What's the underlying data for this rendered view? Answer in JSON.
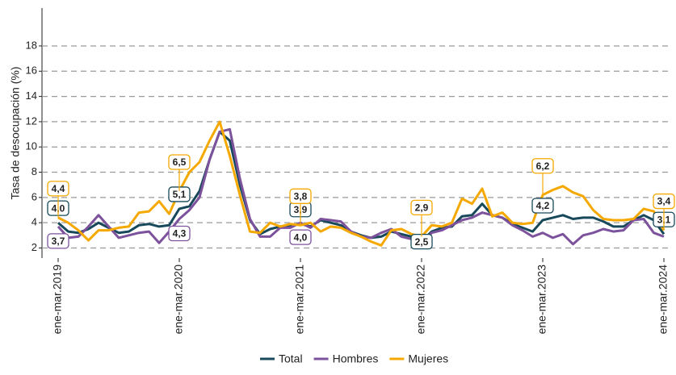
{
  "chart_data": {
    "type": "line",
    "y_label": "Tasa de desocupación (%)",
    "categories": [
      "ene-mar.2019",
      null,
      null,
      null,
      null,
      null,
      null,
      null,
      null,
      null,
      null,
      null,
      "ene-mar.2020",
      null,
      null,
      null,
      null,
      null,
      null,
      null,
      null,
      null,
      null,
      null,
      "ene-mar.2021",
      null,
      null,
      null,
      null,
      null,
      null,
      null,
      null,
      null,
      null,
      null,
      "ene-mar.2022",
      null,
      null,
      null,
      null,
      null,
      null,
      null,
      null,
      null,
      null,
      null,
      "ene-mar.2023",
      null,
      null,
      null,
      null,
      null,
      null,
      null,
      null,
      null,
      null,
      null,
      "ene-mar.2024"
    ],
    "ylim": [
      1.2,
      21
    ],
    "yticks": [
      2,
      4,
      6,
      8,
      10,
      12,
      14,
      16,
      18
    ],
    "grid": true,
    "legend": "bottom",
    "series": [
      {
        "name": "Total",
        "color": "#17495b",
        "values": [
          4.0,
          3.3,
          3.2,
          3.5,
          4.0,
          3.6,
          3.2,
          3.3,
          3.8,
          3.9,
          3.7,
          3.8,
          5.1,
          5.3,
          6.5,
          9.0,
          11.2,
          10.5,
          7.0,
          4.2,
          3.1,
          3.5,
          3.7,
          3.8,
          3.9,
          3.7,
          4.2,
          4.0,
          3.8,
          3.3,
          3.0,
          2.8,
          2.9,
          3.3,
          3.1,
          2.9,
          2.5,
          3.3,
          3.6,
          3.7,
          4.5,
          4.6,
          5.5,
          4.6,
          4.4,
          3.9,
          3.6,
          3.3,
          4.2,
          4.4,
          4.6,
          4.3,
          4.4,
          4.4,
          4.1,
          3.7,
          3.7,
          4.2,
          4.6,
          4.2,
          3.1
        ],
        "value_labels": [
          "4,0",
          null,
          null,
          null,
          null,
          null,
          null,
          null,
          null,
          null,
          null,
          null,
          "5,1",
          null,
          null,
          null,
          null,
          null,
          null,
          null,
          null,
          null,
          null,
          null,
          "3,9",
          null,
          null,
          null,
          null,
          null,
          null,
          null,
          null,
          null,
          null,
          null,
          "2,5",
          null,
          null,
          null,
          null,
          null,
          null,
          null,
          null,
          null,
          null,
          null,
          "4,2",
          null,
          null,
          null,
          null,
          null,
          null,
          null,
          null,
          null,
          null,
          null,
          "3,1"
        ]
      },
      {
        "name": "Hombres",
        "color": "#7d529c",
        "values": [
          3.7,
          2.8,
          2.9,
          3.7,
          4.6,
          3.7,
          2.8,
          3.0,
          3.2,
          3.3,
          2.4,
          3.3,
          4.3,
          5.0,
          6.0,
          9.0,
          11.2,
          11.4,
          7.5,
          4.3,
          2.9,
          2.9,
          3.6,
          3.6,
          4.0,
          3.6,
          4.3,
          4.2,
          4.1,
          3.3,
          2.9,
          2.8,
          3.2,
          3.5,
          2.9,
          2.7,
          2.3,
          3.2,
          3.4,
          3.8,
          4.2,
          4.4,
          4.8,
          4.6,
          4.4,
          3.8,
          3.4,
          2.9,
          3.2,
          2.8,
          3.1,
          2.3,
          3.0,
          3.2,
          3.5,
          3.3,
          3.4,
          4.2,
          4.3,
          3.2,
          2.9
        ],
        "value_labels": [
          "3,7",
          null,
          null,
          null,
          null,
          null,
          null,
          null,
          null,
          null,
          null,
          null,
          "4,3",
          null,
          null,
          null,
          null,
          null,
          null,
          null,
          null,
          null,
          null,
          null,
          "4,0",
          null,
          null,
          null,
          null,
          null,
          null,
          null,
          null,
          null,
          null,
          null,
          null,
          null,
          null,
          null,
          null,
          null,
          null,
          null,
          null,
          null,
          null,
          null,
          null,
          null,
          null,
          null,
          null,
          null,
          null,
          null,
          null,
          null,
          null,
          null,
          null
        ]
      },
      {
        "name": "Mujeres",
        "color": "#f5a800",
        "values": [
          4.4,
          4.0,
          3.4,
          2.6,
          3.4,
          3.4,
          3.6,
          3.7,
          4.8,
          4.9,
          5.7,
          4.7,
          6.5,
          8.0,
          8.8,
          10.5,
          12.0,
          9.3,
          6.2,
          3.3,
          3.2,
          4.0,
          3.7,
          3.9,
          3.8,
          4.0,
          3.3,
          3.7,
          3.6,
          3.2,
          2.9,
          2.5,
          2.2,
          3.4,
          3.5,
          3.1,
          2.9,
          3.8,
          3.7,
          4.0,
          5.9,
          5.5,
          6.7,
          4.5,
          4.8,
          4.0,
          3.9,
          4.0,
          6.2,
          6.6,
          6.9,
          6.4,
          6.1,
          5.0,
          4.3,
          4.2,
          4.2,
          4.3,
          5.1,
          4.9,
          3.4
        ],
        "value_labels": [
          "4,4",
          null,
          null,
          null,
          null,
          null,
          null,
          null,
          null,
          null,
          null,
          null,
          "6,5",
          null,
          null,
          null,
          null,
          null,
          null,
          null,
          null,
          null,
          null,
          null,
          "3,8",
          null,
          null,
          null,
          null,
          null,
          null,
          null,
          null,
          null,
          null,
          null,
          "2,9",
          null,
          null,
          null,
          null,
          null,
          null,
          null,
          null,
          null,
          null,
          null,
          "6,2",
          null,
          null,
          null,
          null,
          null,
          null,
          null,
          null,
          null,
          null,
          null,
          "3,4"
        ]
      }
    ]
  }
}
